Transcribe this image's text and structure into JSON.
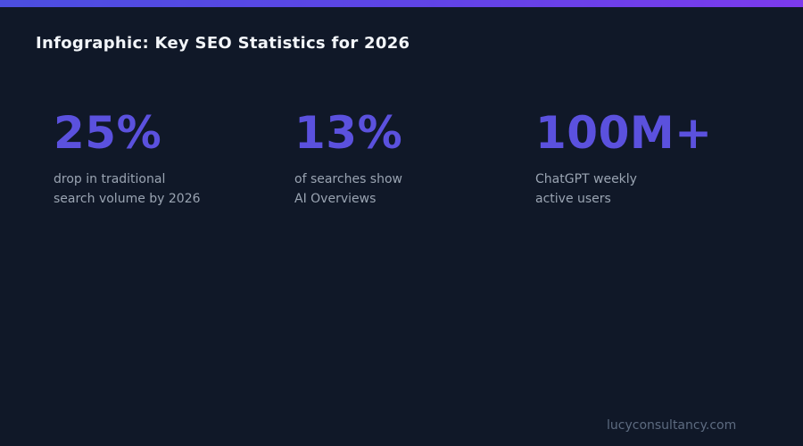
{
  "page": {
    "title": "Infographic: Key SEO Statistics for 2026",
    "footer": "lucyconsultancy.com"
  },
  "colors": {
    "background": "#101828",
    "accent_stat": "#5b51de",
    "top_bar_gradient_start": "#4b4ee0",
    "top_bar_gradient_end": "#7c3aed",
    "title_text": "#f2f5f9",
    "description_text": "#9aa4b2",
    "footer_text": "#5d6b80"
  },
  "stats": [
    {
      "value": "25%",
      "description_line1": "drop in traditional",
      "description_line2": "search volume by 2026"
    },
    {
      "value": "13%",
      "description_line1": "of searches show",
      "description_line2": "AI Overviews"
    },
    {
      "value": "100M+",
      "description_line1": "ChatGPT weekly",
      "description_line2": "active users"
    }
  ]
}
